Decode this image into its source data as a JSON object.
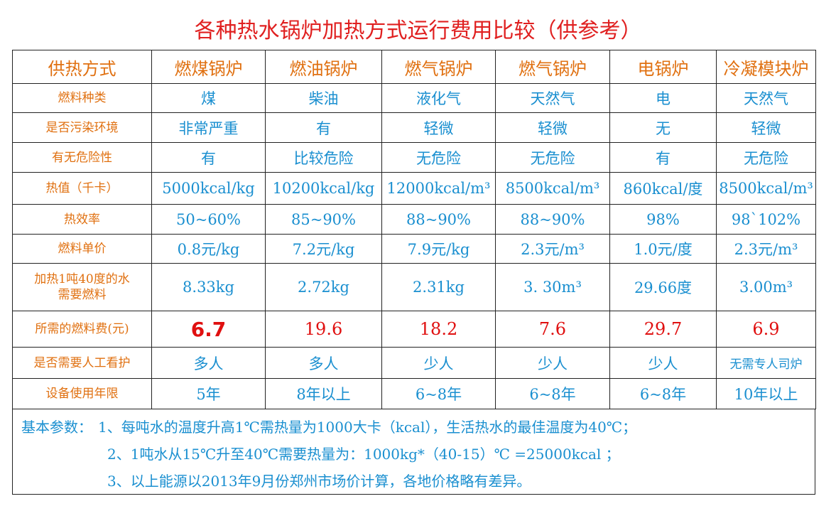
{
  "title": "各种热水锅炉加热方式运行费用比较（供参考）",
  "table": {
    "header": [
      "供热方式",
      "燃煤锅炉",
      "燃油锅炉",
      "燃气锅炉",
      "燃气锅炉",
      "电锅炉",
      "冷凝模块炉"
    ],
    "rows": [
      {
        "label": "燃料种类",
        "cells": [
          "煤",
          "柴油",
          "液化气",
          "天然气",
          "电",
          "天然气"
        ]
      },
      {
        "label": "是否污染环境",
        "cells": [
          "非常严重",
          "有",
          "轻微",
          "轻微",
          "无",
          "轻微"
        ]
      },
      {
        "label": "有无危险性",
        "cells": [
          "有",
          "比较危险",
          "无危险",
          "无危险",
          "有",
          "无危险"
        ]
      },
      {
        "label": "热值（千卡）",
        "cells": [
          "5000kcal/kg",
          "10200kcal/kg",
          "12000kcal/m³",
          "8500kcal/m³",
          "860kcal/度",
          "8500kcal/m³"
        ]
      },
      {
        "label": "热效率",
        "cells": [
          "50~60%",
          "85~90%",
          "88~90%",
          "88~90%",
          "98%",
          "98`102%"
        ]
      },
      {
        "label": "燃料单价",
        "cells": [
          "0.8元/kg",
          "7.2元/kg",
          "7.9元/kg",
          "2.3元/m³",
          "1.0元/度",
          "2.3元/m³"
        ]
      },
      {
        "label": "加热1吨40度的水\n需要燃料",
        "cells": [
          "8.33kg",
          "2.72kg",
          "2.31kg",
          "3. 30m³",
          "29.66度",
          "3.00m³"
        ]
      },
      {
        "label": "所需的燃料费(元)",
        "cells": [
          "6.7",
          "19.6",
          "18.2",
          "7.6",
          "29.7",
          "6.9"
        ]
      },
      {
        "label": "是否需要人工看护",
        "cells": [
          "多人",
          "多人",
          "少人",
          "少人",
          "少人",
          "无需专人司炉"
        ]
      },
      {
        "label": "设备使用年限",
        "cells": [
          "5年",
          "8年以上",
          "6~8年",
          "6~8年",
          "6~8年",
          "10年以上"
        ]
      }
    ]
  },
  "notes": {
    "label": "基本参数：",
    "lines": [
      "1、每吨水的温度升高1℃需热量为1000大卡（kcal），生活热水的最佳温度为40℃；",
      "2、1吨水从15℃升至40℃需要热量为：1000kg*（40-15）℃ =25000kcal ；",
      "3、以上能源以2013年9月份郑州市场价计算，各地价格略有差异。"
    ]
  }
}
